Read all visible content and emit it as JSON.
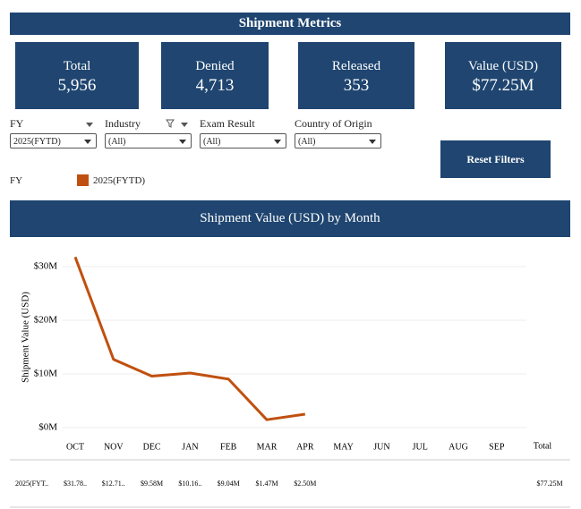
{
  "header": {
    "title": "Shipment Metrics"
  },
  "kpis": [
    {
      "label": "Total",
      "value": "5,956"
    },
    {
      "label": "Denied",
      "value": "4,713"
    },
    {
      "label": "Released",
      "value": "353"
    },
    {
      "label": "Value (USD)",
      "value": "$77.25M"
    }
  ],
  "filters": [
    {
      "label": "FY",
      "selected": "2025(FYTD)"
    },
    {
      "label": "Industry",
      "selected": "(All)"
    },
    {
      "label": "Exam Result",
      "selected": "(All)"
    },
    {
      "label": "Country of Origin",
      "selected": "(All)"
    }
  ],
  "reset_button": "Reset Filters",
  "legend": {
    "title": "FY"
  },
  "chart_data": {
    "type": "line",
    "title": "Shipment Value (USD) by Month",
    "y_label": "Shipment Value (USD)",
    "categories": [
      "OCT",
      "NOV",
      "DEC",
      "JAN",
      "FEB",
      "MAR",
      "APR",
      "MAY",
      "JUN",
      "JUL",
      "AUG",
      "SEP"
    ],
    "series": [
      {
        "name": "2025(FYTD)",
        "color": "#c0500f",
        "values": [
          31.78,
          12.71,
          9.58,
          10.16,
          9.04,
          1.47,
          2.5,
          null,
          null,
          null,
          null,
          null
        ],
        "value_labels": [
          "$31.78..",
          "$12.71..",
          "$9.58M",
          "$10.16..",
          "$9.04M",
          "$1.47M",
          "$2.50M",
          null,
          null,
          null,
          null,
          null
        ]
      }
    ],
    "ylim": [
      0,
      33
    ],
    "yticks": [
      {
        "value": 0,
        "label": "$0M"
      },
      {
        "value": 10,
        "label": "$10M"
      },
      {
        "value": 20,
        "label": "$20M"
      },
      {
        "value": 30,
        "label": "$30M"
      }
    ],
    "grid": true
  },
  "table": {
    "row_label": "2025(FYT..",
    "total_header": "Total",
    "total": "$77.25M"
  }
}
